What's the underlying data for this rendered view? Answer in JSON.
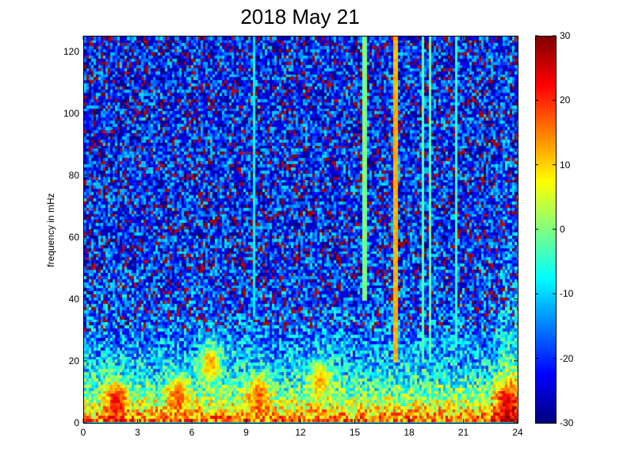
{
  "chart_data": {
    "type": "heatmap",
    "title": "2018 May 21",
    "xlabel": "",
    "ylabel": "frequency in mHz",
    "x_ticks": [
      "0",
      "3",
      "6",
      "9",
      "12",
      "15",
      "18",
      "21",
      "24"
    ],
    "x_range": [
      0,
      24
    ],
    "y_ticks": [
      "0",
      "20",
      "40",
      "60",
      "80",
      "100",
      "120"
    ],
    "y_range": [
      0,
      125
    ],
    "colorbar": {
      "colormap": "jet",
      "range": [
        -30,
        30
      ],
      "ticks": [
        "30",
        "20",
        "10",
        "0",
        "-10",
        "-20",
        "-30"
      ]
    },
    "vertical_stripes": [
      {
        "x": 9.4,
        "from_freq": 35,
        "level": -8
      },
      {
        "x": 15.5,
        "from_freq": 40,
        "level": 0
      },
      {
        "x": 17.2,
        "from_freq": 20,
        "level": 12
      },
      {
        "x": 18.7,
        "from_freq": 20,
        "level": -2
      },
      {
        "x": 19.1,
        "from_freq": 20,
        "level": -2
      },
      {
        "x": 20.5,
        "from_freq": 25,
        "level": -4
      }
    ],
    "hotspots": [
      {
        "x": 1.8,
        "freq": 8,
        "level": 30
      },
      {
        "x": 5.2,
        "freq": 10,
        "level": 25
      },
      {
        "x": 7.0,
        "freq": 20,
        "level": 25
      },
      {
        "x": 9.6,
        "freq": 10,
        "level": 25
      },
      {
        "x": 13.0,
        "freq": 15,
        "level": 20
      },
      {
        "x": 23.3,
        "freq": 8,
        "level": 30
      }
    ]
  }
}
